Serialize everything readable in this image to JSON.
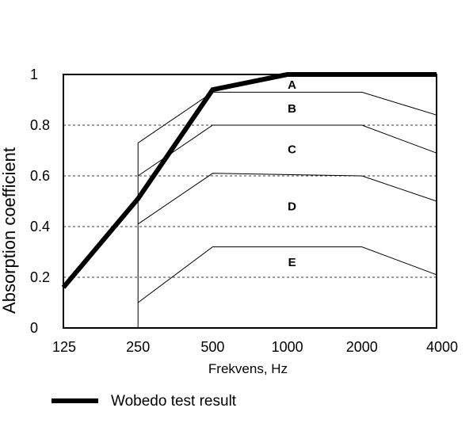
{
  "chart_data": {
    "type": "line",
    "xlabel": "Frekvens, Hz",
    "ylabel": "Absorption coefficient",
    "x_ticks": [
      "125",
      "250",
      "500",
      "1000",
      "2000",
      "4000"
    ],
    "y_ticks": [
      "0",
      "0.2",
      "0.4",
      "0.6",
      "0.8",
      "1"
    ],
    "ylim": [
      0,
      1
    ],
    "x_scale": "log",
    "gridlines": "horizontal dashed",
    "class_boundaries": [
      {
        "name": "",
        "x": [
          250,
          500,
          2000,
          4000
        ],
        "y": [
          0.73,
          0.93,
          0.93,
          0.84
        ]
      },
      {
        "name": "",
        "x": [
          250,
          500,
          2000,
          4000
        ],
        "y": [
          0.6,
          0.8,
          0.8,
          0.69
        ]
      },
      {
        "name": "",
        "x": [
          250,
          500,
          2000,
          4000
        ],
        "y": [
          0.41,
          0.61,
          0.6,
          0.5
        ]
      },
      {
        "name": "",
        "x": [
          250,
          500,
          2000,
          4000
        ],
        "y": [
          0.1,
          0.32,
          0.32,
          0.21
        ]
      }
    ],
    "zones": [
      {
        "label": "A",
        "x": 1000,
        "y": 0.96
      },
      {
        "label": "B",
        "x": 1000,
        "y": 0.865
      },
      {
        "label": "C",
        "x": 1000,
        "y": 0.705
      },
      {
        "label": "D",
        "x": 1000,
        "y": 0.48
      },
      {
        "label": "E",
        "x": 1000,
        "y": 0.26
      }
    ],
    "series": [
      {
        "name": "Wobedo test result",
        "x": [
          125,
          250,
          500,
          1000,
          2000,
          4000
        ],
        "y": [
          0.16,
          0.51,
          0.94,
          1.0,
          1.0,
          1.0
        ]
      }
    ],
    "legend": {
      "position": "bottom-left",
      "label": "Wobedo test result"
    }
  }
}
